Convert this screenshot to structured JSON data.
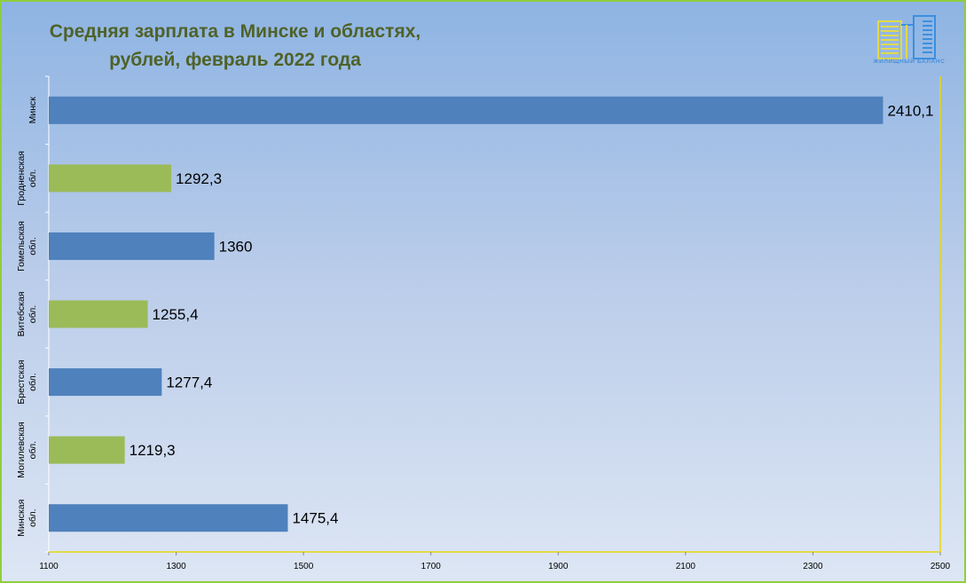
{
  "title_line1": "Средняя зарплата в Минске и областях,",
  "title_line2": "рублей, февраль 2022 года",
  "logo_text": "ЖИЛИЩНЫЙ БАЛАНС",
  "colors": {
    "blue_bar": "#4f81bd",
    "green_bar": "#9bbb59",
    "title": "#4f6228",
    "border": "#8fce3c",
    "axis_line": "#e6d80f"
  },
  "chart_data": {
    "type": "bar",
    "orientation": "horizontal",
    "title": "Средняя зарплата в Минске и областях, рублей, февраль 2022 года",
    "categories": [
      [
        "Минск"
      ],
      [
        "Гродненская",
        "обл."
      ],
      [
        "Гомельская",
        "обл."
      ],
      [
        "Витебская",
        "обл."
      ],
      [
        "Брестская",
        "обл."
      ],
      [
        "Могилевская",
        "обл."
      ],
      [
        "Минская",
        "обл."
      ]
    ],
    "values": [
      2410.1,
      1292.3,
      1360,
      1255.4,
      1277.4,
      1219.3,
      1475.4
    ],
    "value_labels": [
      "2410,1",
      "1292,3",
      "1360",
      "1255,4",
      "1277,4",
      "1219,3",
      "1475,4"
    ],
    "bar_colors": [
      "blue",
      "green",
      "blue",
      "green",
      "blue",
      "green",
      "blue"
    ],
    "xlim": [
      1100,
      2500
    ],
    "xticks": [
      1100,
      1300,
      1500,
      1700,
      1900,
      2100,
      2300,
      2500
    ],
    "xlabel": "",
    "ylabel": "",
    "grid": false,
    "legend": false
  }
}
